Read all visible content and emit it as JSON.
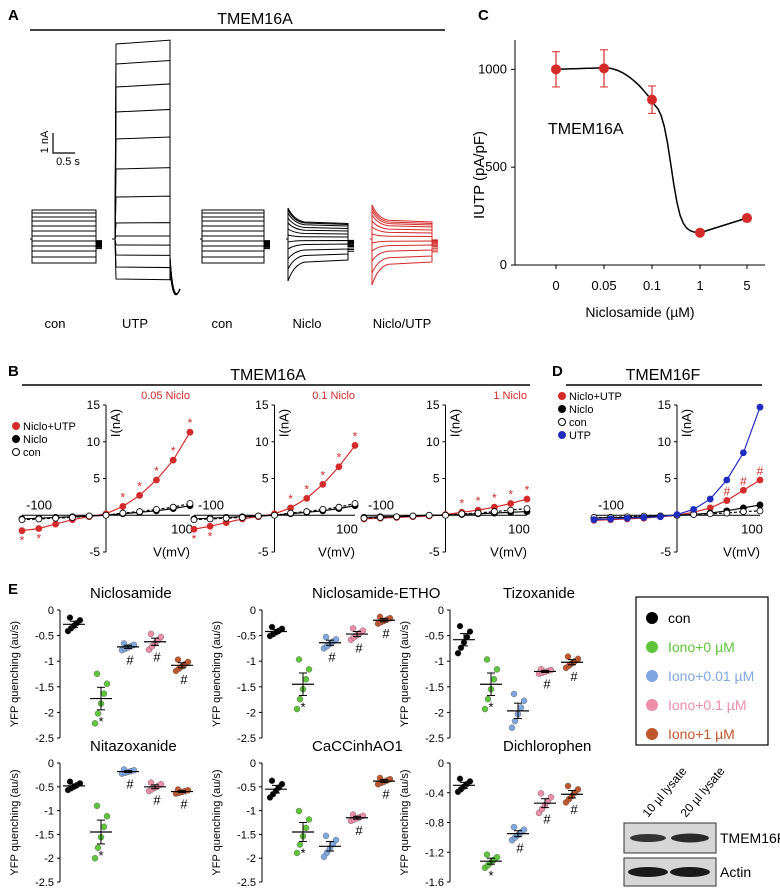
{
  "panels": {
    "A": {
      "letter": "A",
      "title": "TMEM16A",
      "scale_current": "1 nA",
      "scale_time": "0.5 s",
      "labels": [
        "con",
        "UTP",
        "con",
        "Niclo",
        "Niclo/UTP"
      ]
    },
    "B": {
      "letter": "B",
      "title": "TMEM16A"
    },
    "C": {
      "letter": "C"
    },
    "D": {
      "letter": "D",
      "title": "TMEM16F"
    },
    "E": {
      "letter": "E"
    },
    "blot": {
      "lanes": [
        "10 µl lysate",
        "20 µl lysate"
      ],
      "bands": [
        "TMEM16F",
        "Actin"
      ]
    }
  },
  "colors": {
    "red": "#d42a2a",
    "black": "#000000",
    "blue": "#1f2dbf",
    "green": "#5ec43a",
    "lightblue": "#7fa7e0",
    "pink": "#ee8ea8",
    "brown": "#c0572c"
  },
  "chart_data": [
    {
      "type": "line",
      "panel": "C",
      "label": "TMEM16A",
      "xlabel": "Niclosamide (µM)",
      "ylabel": "IUTP (pA/pF)",
      "categories": [
        "0",
        "0.05",
        "0.1",
        "1",
        "5"
      ],
      "values": [
        1000,
        1005,
        845,
        165,
        240
      ],
      "errors": [
        90,
        95,
        70,
        10,
        15
      ],
      "yticks": [
        0,
        500,
        1000
      ],
      "ylim": [
        0,
        1150
      ]
    },
    {
      "type": "line",
      "panel": "B",
      "subtitle": "0.05 Niclo",
      "xlabel": "V(mV)",
      "ylabel": "I(nA)",
      "xlim": [
        -100,
        100
      ],
      "ylim": [
        -5,
        15
      ],
      "xtick_labels": [
        "-100",
        "100"
      ],
      "yticks": [
        -5,
        0,
        5,
        10,
        15
      ],
      "legend": [
        "Niclo+UTP",
        "Niclo",
        "con"
      ],
      "x": [
        -100,
        -80,
        -60,
        -40,
        -20,
        0,
        20,
        40,
        60,
        80,
        100
      ],
      "series": [
        {
          "name": "Niclo+UTP",
          "values": [
            -2.1,
            -1.8,
            -1.2,
            -0.6,
            -0.2,
            0.2,
            1.2,
            2.7,
            4.8,
            7.5,
            11.3
          ]
        },
        {
          "name": "Niclo",
          "values": [
            -0.5,
            -0.4,
            -0.3,
            -0.2,
            -0.1,
            0.0,
            0.2,
            0.4,
            0.6,
            0.9,
            1.3
          ]
        },
        {
          "name": "con",
          "values": [
            -0.6,
            -0.5,
            -0.4,
            -0.3,
            -0.1,
            0.0,
            0.3,
            0.5,
            0.8,
            1.1,
            1.6
          ]
        }
      ]
    },
    {
      "type": "line",
      "panel": "B",
      "subtitle": "0.1 Niclo",
      "xlabel": "V(mV)",
      "ylabel": "I(nA)",
      "xlim": [
        -100,
        100
      ],
      "ylim": [
        -5,
        15
      ],
      "xtick_labels": [
        "-100",
        "100"
      ],
      "yticks": [
        -5,
        0,
        5,
        10,
        15
      ],
      "x": [
        -100,
        -80,
        -60,
        -40,
        -20,
        0,
        20,
        40,
        60,
        80,
        100
      ],
      "series": [
        {
          "name": "Niclo+UTP",
          "values": [
            -1.9,
            -1.5,
            -1.0,
            -0.5,
            -0.2,
            0.2,
            1.0,
            2.3,
            4.2,
            6.6,
            9.5
          ]
        },
        {
          "name": "Niclo",
          "values": [
            -0.5,
            -0.4,
            -0.3,
            -0.2,
            -0.1,
            0.0,
            0.2,
            0.4,
            0.6,
            0.9,
            1.3
          ]
        },
        {
          "name": "con",
          "values": [
            -0.6,
            -0.5,
            -0.4,
            -0.3,
            -0.1,
            0.0,
            0.3,
            0.5,
            0.8,
            1.1,
            1.6
          ]
        }
      ]
    },
    {
      "type": "line",
      "panel": "B",
      "subtitle": "1 Niclo",
      "xlabel": "V(mV)",
      "ylabel": "I(nA)",
      "xlim": [
        -100,
        100
      ],
      "ylim": [
        -5,
        15
      ],
      "xtick_labels": [
        "-100",
        "100"
      ],
      "yticks": [
        -5,
        0,
        5,
        10,
        15
      ],
      "x": [
        -100,
        -80,
        -60,
        -40,
        -20,
        0,
        20,
        40,
        60,
        80,
        100
      ],
      "series": [
        {
          "name": "Niclo+UTP",
          "values": [
            -0.5,
            -0.4,
            -0.3,
            -0.2,
            -0.1,
            0.1,
            0.4,
            0.7,
            1.1,
            1.6,
            2.2
          ]
        },
        {
          "name": "Niclo",
          "values": [
            -0.3,
            -0.2,
            -0.2,
            -0.1,
            0.0,
            0.0,
            0.1,
            0.2,
            0.3,
            0.4,
            0.5
          ]
        },
        {
          "name": "con",
          "values": [
            -0.4,
            -0.3,
            -0.2,
            -0.1,
            0.0,
            0.0,
            0.2,
            0.3,
            0.5,
            0.7,
            0.9
          ]
        }
      ]
    },
    {
      "type": "line",
      "panel": "D",
      "title": "TMEM16F",
      "xlabel": "V(mV)",
      "ylabel": "I(nA)",
      "xlim": [
        -100,
        100
      ],
      "ylim": [
        -5,
        15
      ],
      "xtick_labels": [
        "-100",
        "100"
      ],
      "yticks": [
        -5,
        0,
        5,
        10,
        15
      ],
      "legend": [
        "Niclo+UTP",
        "Niclo",
        "con",
        "UTP"
      ],
      "x": [
        -100,
        -80,
        -60,
        -40,
        -20,
        0,
        20,
        40,
        60,
        80,
        100
      ],
      "series": [
        {
          "name": "Niclo+UTP",
          "values": [
            -0.7,
            -0.6,
            -0.5,
            -0.4,
            -0.2,
            0.0,
            0.4,
            1.0,
            2.0,
            3.4,
            4.8
          ]
        },
        {
          "name": "Niclo",
          "values": [
            -0.4,
            -0.3,
            -0.3,
            -0.2,
            -0.1,
            0.0,
            0.1,
            0.3,
            0.6,
            1.0,
            1.4
          ]
        },
        {
          "name": "con",
          "values": [
            -0.3,
            -0.3,
            -0.2,
            -0.1,
            -0.1,
            0.0,
            0.1,
            0.2,
            0.3,
            0.5,
            0.6
          ]
        },
        {
          "name": "UTP",
          "values": [
            -0.6,
            -0.5,
            -0.4,
            -0.3,
            -0.2,
            0.1,
            0.8,
            2.2,
            4.8,
            8.5,
            14.7
          ]
        }
      ]
    },
    {
      "type": "scatter",
      "panel": "E",
      "title": "Niclosamide",
      "ylabel": "YFP quenching (au/s)",
      "yticks": [
        -2.5,
        -2,
        -1.5,
        -1,
        -0.5,
        0
      ],
      "ylim": [
        -2.5,
        0
      ],
      "groups": [
        "con",
        "Iono+0 µM",
        "Iono+0.01 µM",
        "Iono+0.1 µM",
        "Iono+1 µM"
      ],
      "means": [
        -0.28,
        -1.73,
        -0.72,
        -0.62,
        -1.08
      ],
      "sems": [
        0.06,
        0.22,
        0.03,
        0.07,
        0.05
      ],
      "marks": [
        "",
        "*",
        "#",
        "#",
        "#"
      ]
    },
    {
      "type": "scatter",
      "panel": "E",
      "title": "Niclosamide-ETHO",
      "ylabel": "YFP quenching (au/s)",
      "yticks": [
        -2.5,
        -2,
        -1.5,
        -1,
        -0.5,
        0
      ],
      "ylim": [
        -2.5,
        0
      ],
      "groups": [
        "con",
        "Iono+0 µM",
        "Iono+0.01 µM",
        "Iono+0.1 µM",
        "Iono+1 µM"
      ],
      "means": [
        -0.42,
        -1.45,
        -0.64,
        -0.47,
        -0.2
      ],
      "sems": [
        0.04,
        0.22,
        0.05,
        0.05,
        0.03
      ],
      "marks": [
        "",
        "*",
        "#",
        "#",
        "#"
      ]
    },
    {
      "type": "scatter",
      "panel": "E",
      "title": "Tizoxanide",
      "ylabel": "YFP quenching (au/s)",
      "yticks": [
        -2.5,
        -2,
        -1.5,
        -1,
        -0.5,
        0
      ],
      "ylim": [
        -2.5,
        0
      ],
      "groups": [
        "con",
        "Iono+0 µM",
        "Iono+0.01 µM",
        "Iono+0.1 µM",
        "Iono+1 µM"
      ],
      "means": [
        -0.58,
        -1.45,
        -1.97,
        -1.2,
        -1.02
      ],
      "sems": [
        0.12,
        0.22,
        0.15,
        0.02,
        0.05
      ],
      "marks": [
        "",
        "*",
        "",
        "#",
        "#"
      ]
    },
    {
      "type": "scatter",
      "panel": "E",
      "title": "Nitazoxanide",
      "ylabel": "YFP quenching (au/s)",
      "yticks": [
        -2.5,
        -2,
        -1.5,
        -1,
        -0.5,
        0
      ],
      "ylim": [
        -2.5,
        0
      ],
      "groups": [
        "con",
        "Iono+0 µM",
        "Iono+0.01 µM",
        "Iono+0.1 µM",
        "Iono+1 µM"
      ],
      "means": [
        -0.48,
        -1.45,
        -0.18,
        -0.5,
        -0.6
      ],
      "sems": [
        0.04,
        0.25,
        0.02,
        0.04,
        0.02
      ],
      "marks": [
        "",
        "*",
        "#",
        "#",
        "#"
      ]
    },
    {
      "type": "scatter",
      "panel": "E",
      "title": "CaCCinhAO1",
      "ylabel": "YFP quenching (au/s)",
      "yticks": [
        -2.5,
        -2,
        -1.5,
        -1,
        -0.5,
        0
      ],
      "ylim": [
        -2.5,
        0
      ],
      "groups": [
        "con",
        "Iono+0 µM",
        "Iono+0.01 µM",
        "Iono+0.1 µM",
        "Iono+1 µM"
      ],
      "means": [
        -0.55,
        -1.45,
        -1.75,
        -1.15,
        -0.38
      ],
      "sems": [
        0.08,
        0.2,
        0.1,
        0.03,
        0.03
      ],
      "marks": [
        "",
        "*",
        "",
        "#",
        "#"
      ]
    },
    {
      "type": "scatter",
      "panel": "E",
      "title": "Dichlorophen",
      "ylabel": "YFP quenching (au/s)",
      "yticks": [
        -1.6,
        -1.2,
        -0.8,
        -0.4,
        0
      ],
      "ylim": [
        -1.6,
        0
      ],
      "groups": [
        "con",
        "Iono+0 µM",
        "Iono+0.01 µM",
        "Iono+0.1 µM",
        "Iono+1 µM"
      ],
      "means": [
        -0.3,
        -1.32,
        -0.95,
        -0.54,
        -0.42
      ],
      "sems": [
        0.04,
        0.04,
        0.04,
        0.06,
        0.05
      ],
      "marks": [
        "",
        "*",
        "#",
        "#",
        "#"
      ]
    }
  ]
}
